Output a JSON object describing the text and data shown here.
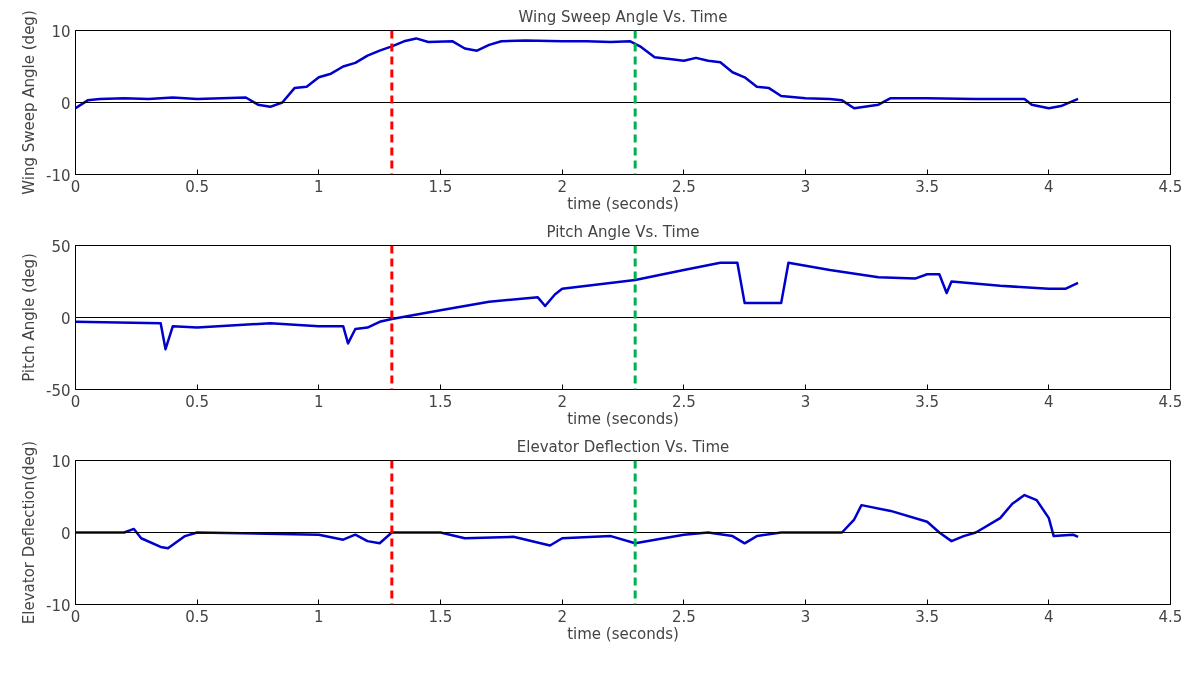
{
  "chart_data": [
    {
      "type": "line",
      "title": "Wing Sweep Angle Vs. Time",
      "xlabel": "time (seconds)",
      "ylabel": "Wing Sweep Angle (deg)",
      "xlim": [
        0,
        4.5
      ],
      "ylim": [
        -10,
        10
      ],
      "xticks": [
        0,
        0.5,
        1,
        1.5,
        2,
        2.5,
        3,
        3.5,
        4,
        4.5
      ],
      "yticks": [
        -10,
        0,
        10
      ],
      "grid": false,
      "series": [
        {
          "color": "#0000cc",
          "x": [
            0,
            0.05,
            0.1,
            0.2,
            0.3,
            0.4,
            0.5,
            0.6,
            0.7,
            0.75,
            0.8,
            0.85,
            0.9,
            0.95,
            1.0,
            1.05,
            1.1,
            1.15,
            1.2,
            1.25,
            1.3,
            1.35,
            1.4,
            1.45,
            1.55,
            1.6,
            1.65,
            1.7,
            1.75,
            1.85,
            2.0,
            2.1,
            2.2,
            2.28,
            2.32,
            2.38,
            2.45,
            2.5,
            2.55,
            2.6,
            2.65,
            2.7,
            2.75,
            2.8,
            2.85,
            2.9,
            3.0,
            3.1,
            3.15,
            3.2,
            3.3,
            3.35,
            3.5,
            3.7,
            3.9,
            3.93,
            4.0,
            4.05,
            4.12
          ],
          "values": [
            -0.8,
            0.3,
            0.5,
            0.6,
            0.5,
            0.7,
            0.5,
            0.6,
            0.7,
            -0.3,
            -0.6,
            0,
            2,
            2.2,
            3.5,
            4,
            5,
            5.5,
            6.5,
            7.2,
            7.8,
            8.5,
            8.9,
            8.4,
            8.5,
            7.5,
            7.2,
            8,
            8.5,
            8.6,
            8.5,
            8.5,
            8.4,
            8.5,
            7.8,
            6.3,
            6,
            5.8,
            6.2,
            5.8,
            5.6,
            4.2,
            3.5,
            2.2,
            2,
            0.9,
            0.6,
            0.5,
            0.3,
            -0.8,
            -0.3,
            0.6,
            0.6,
            0.5,
            0.5,
            -0.3,
            -0.8,
            -0.5,
            0.5
          ]
        }
      ],
      "ref_lines": [
        {
          "axis": "y",
          "value": 0,
          "color": "#000000",
          "line_style": "solid"
        },
        {
          "axis": "x",
          "value": 1.3,
          "color": "#ff0000",
          "line_style": "dashed"
        },
        {
          "axis": "x",
          "value": 2.3,
          "color": "#00b050",
          "line_style": "dashed"
        }
      ]
    },
    {
      "type": "line",
      "title": "Pitch Angle Vs. Time",
      "xlabel": "time (seconds)",
      "ylabel": "Pitch Angle (deg)",
      "xlim": [
        0,
        4.5
      ],
      "ylim": [
        -50,
        50
      ],
      "xticks": [
        0,
        0.5,
        1,
        1.5,
        2,
        2.5,
        3,
        3.5,
        4,
        4.5
      ],
      "yticks": [
        -50,
        0,
        50
      ],
      "grid": false,
      "series": [
        {
          "color": "#0000cc",
          "x": [
            0,
            0.35,
            0.37,
            0.4,
            0.5,
            0.8,
            1.0,
            1.1,
            1.12,
            1.15,
            1.2,
            1.25,
            1.3,
            1.5,
            1.7,
            1.9,
            1.93,
            1.97,
            2.0,
            2.3,
            2.5,
            2.65,
            2.72,
            2.75,
            2.9,
            2.93,
            3.1,
            3.3,
            3.45,
            3.5,
            3.55,
            3.58,
            3.6,
            3.8,
            4.0,
            4.07,
            4.12
          ],
          "values": [
            -3,
            -4,
            -22,
            -6,
            -7,
            -4,
            -6,
            -6,
            -18,
            -8,
            -7,
            -3,
            -1,
            5,
            11,
            14,
            8,
            16,
            20,
            26,
            33,
            38,
            38,
            10,
            10,
            38,
            33,
            28,
            27,
            30,
            30,
            17,
            25,
            22,
            20,
            20,
            24
          ]
        }
      ],
      "ref_lines": [
        {
          "axis": "y",
          "value": 0,
          "color": "#000000",
          "line_style": "solid"
        },
        {
          "axis": "x",
          "value": 1.3,
          "color": "#ff0000",
          "line_style": "dashed"
        },
        {
          "axis": "x",
          "value": 2.3,
          "color": "#00b050",
          "line_style": "dashed"
        }
      ]
    },
    {
      "type": "line",
      "title": "Elevator Deflection Vs. Time",
      "xlabel": "time (seconds)",
      "ylabel": "Elevator Deflection(deg)",
      "xlim": [
        0,
        4.5
      ],
      "ylim": [
        -10,
        10
      ],
      "xticks": [
        0,
        0.5,
        1,
        1.5,
        2,
        2.5,
        3,
        3.5,
        4,
        4.5
      ],
      "yticks": [
        -10,
        0,
        10
      ],
      "grid": false,
      "series": [
        {
          "color": "#0000cc",
          "x": [
            0,
            0.2,
            0.24,
            0.27,
            0.35,
            0.38,
            0.45,
            0.5,
            1.0,
            1.1,
            1.15,
            1.2,
            1.25,
            1.3,
            1.5,
            1.6,
            1.8,
            1.95,
            2.0,
            2.2,
            2.3,
            2.5,
            2.6,
            2.7,
            2.75,
            2.8,
            2.9,
            3.15,
            3.2,
            3.23,
            3.35,
            3.5,
            3.55,
            3.6,
            3.65,
            3.7,
            3.8,
            3.85,
            3.9,
            3.95,
            4.0,
            4.02,
            4.1,
            4.12
          ],
          "values": [
            0,
            0,
            0.5,
            -0.8,
            -2,
            -2.2,
            -0.5,
            0,
            -0.3,
            -1,
            -0.3,
            -1.2,
            -1.5,
            0,
            0,
            -0.8,
            -0.6,
            -1.8,
            -0.8,
            -0.5,
            -1.5,
            -0.3,
            0,
            -0.5,
            -1.5,
            -0.5,
            0,
            0,
            1.8,
            3.8,
            3,
            1.5,
            0,
            -1.2,
            -0.5,
            0,
            2,
            4,
            5.2,
            4.5,
            2,
            -0.5,
            -0.3,
            -0.6
          ]
        }
      ],
      "ref_lines": [
        {
          "axis": "y",
          "value": 0,
          "color": "#000000",
          "line_style": "solid"
        },
        {
          "axis": "x",
          "value": 1.3,
          "color": "#ff0000",
          "line_style": "dashed"
        },
        {
          "axis": "x",
          "value": 2.3,
          "color": "#00b050",
          "line_style": "dashed"
        }
      ]
    }
  ]
}
